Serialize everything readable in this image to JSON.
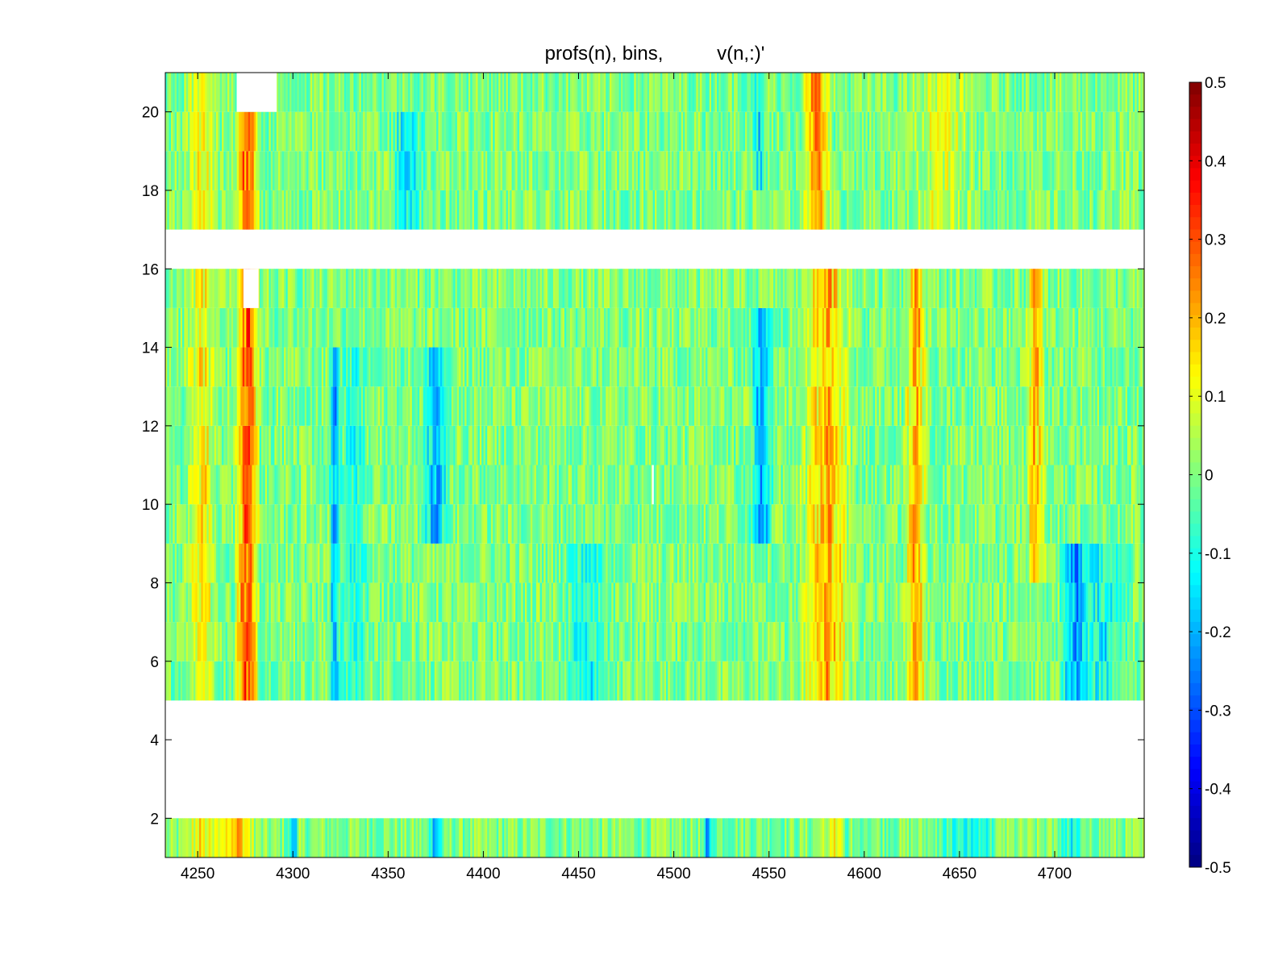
{
  "chart_data": {
    "type": "heatmap",
    "title": "profs(n), bins,          v(n,:)'",
    "xlabel": "",
    "ylabel": "",
    "xlim": [
      4233,
      4747
    ],
    "ylim": [
      1,
      21
    ],
    "x_ticks": [
      4250,
      4300,
      4350,
      4400,
      4450,
      4500,
      4550,
      4600,
      4650,
      4700
    ],
    "y_ticks": [
      2,
      4,
      6,
      8,
      10,
      12,
      14,
      16,
      18,
      20
    ],
    "grid": false,
    "colormap": "jet",
    "colorbar": {
      "clim": [
        -0.5,
        0.5
      ],
      "ticks": [
        0.5,
        0.4,
        0.3,
        0.2,
        0.1,
        0,
        -0.1,
        -0.2,
        -0.3,
        -0.4,
        -0.5
      ],
      "tick_labels": [
        "0.5",
        "0.4",
        "0.3",
        "0.2",
        "0.1",
        "0",
        "-0.1",
        "-0.2",
        "-0.3",
        "-0.4",
        "-0.5"
      ]
    },
    "rows": [
      2,
      6,
      7,
      8,
      9,
      10,
      11,
      12,
      13,
      14,
      15,
      16,
      18,
      19,
      20,
      21
    ],
    "missing_rows": [
      3,
      4,
      5,
      17
    ],
    "features": [
      {
        "x_center": 4276,
        "width": 10,
        "value": 0.32,
        "rows": [
          6,
          16
        ]
      },
      {
        "x_center": 4276,
        "width": 10,
        "value": 0.3,
        "rows": [
          18,
          20
        ]
      },
      {
        "x_center": 4270,
        "width": 18,
        "value": 0.22,
        "rows": [
          2,
          2
        ]
      },
      {
        "x_center": 4252,
        "width": 14,
        "value": 0.13,
        "rows": [
          2,
          21
        ]
      },
      {
        "x_center": 4322,
        "width": 5,
        "value": -0.2,
        "rows": [
          6,
          14
        ]
      },
      {
        "x_center": 4332,
        "width": 14,
        "value": -0.1,
        "rows": [
          6,
          14
        ]
      },
      {
        "x_center": 4375,
        "width": 12,
        "value": -0.2,
        "rows": [
          10,
          14
        ]
      },
      {
        "x_center": 4300,
        "width": 5,
        "value": -0.25,
        "rows": [
          2,
          2
        ]
      },
      {
        "x_center": 4375,
        "width": 8,
        "value": -0.2,
        "rows": [
          2,
          2
        ]
      },
      {
        "x_center": 4360,
        "width": 16,
        "value": -0.12,
        "rows": [
          18,
          20
        ]
      },
      {
        "x_center": 4455,
        "width": 22,
        "value": -0.12,
        "rows": [
          6,
          9
        ]
      },
      {
        "x_center": 4518,
        "width": 6,
        "value": -0.22,
        "rows": [
          2,
          2
        ]
      },
      {
        "x_center": 4546,
        "width": 10,
        "value": -0.2,
        "rows": [
          10,
          15
        ]
      },
      {
        "x_center": 4545,
        "width": 6,
        "value": -0.15,
        "rows": [
          19,
          21
        ]
      },
      {
        "x_center": 4580,
        "width": 22,
        "value": 0.2,
        "rows": [
          6,
          16
        ]
      },
      {
        "x_center": 4575,
        "width": 12,
        "value": 0.24,
        "rows": [
          18,
          21
        ]
      },
      {
        "x_center": 4590,
        "width": 24,
        "value": 0.14,
        "rows": [
          2,
          2
        ]
      },
      {
        "x_center": 4594,
        "width": 14,
        "value": -0.15,
        "rows": [
          2,
          2
        ]
      },
      {
        "x_center": 4627,
        "width": 10,
        "value": 0.2,
        "rows": [
          6,
          16
        ]
      },
      {
        "x_center": 4640,
        "width": 26,
        "value": 0.1,
        "rows": [
          18,
          21
        ]
      },
      {
        "x_center": 4690,
        "width": 8,
        "value": 0.2,
        "rows": [
          9,
          16
        ]
      },
      {
        "x_center": 4655,
        "width": 30,
        "value": -0.12,
        "rows": [
          2,
          2
        ]
      },
      {
        "x_center": 4710,
        "width": 12,
        "value": -0.2,
        "rows": [
          6,
          9
        ]
      },
      {
        "x_center": 4710,
        "width": 14,
        "value": -0.12,
        "rows": [
          2,
          2
        ]
      },
      {
        "x_center": 4725,
        "width": 26,
        "value": -0.12,
        "rows": [
          6,
          9
        ]
      }
    ],
    "nan_marks": [
      {
        "x": 4281,
        "rows": [
          20,
          21
        ],
        "width": 21
      },
      {
        "x": 4278,
        "rows": [
          15,
          16
        ],
        "width": 8
      },
      {
        "x": 4489,
        "rows": [
          10,
          11
        ],
        "width": 1
      }
    ]
  }
}
